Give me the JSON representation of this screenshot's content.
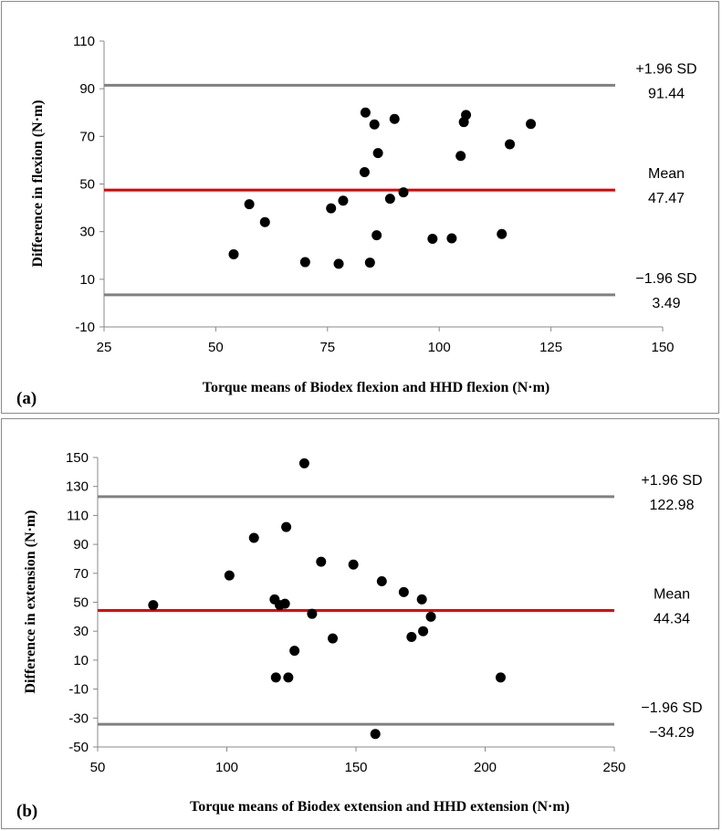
{
  "chart_data": [
    {
      "type": "scatter",
      "panel_label": "(a)",
      "xlabel": "Torque means of Biodex flexion and HHD flexion (N·m)",
      "ylabel": "Difference in flexion (N·m)",
      "xlim": [
        25,
        150
      ],
      "ylim": [
        -10,
        110
      ],
      "x_ticks": [
        25,
        50,
        75,
        100,
        125,
        150
      ],
      "y_ticks": [
        -10,
        10,
        30,
        50,
        70,
        90,
        110
      ],
      "x": [
        54,
        57.5,
        61,
        70,
        75.8,
        77.5,
        78.5,
        83.3,
        83.5,
        84.5,
        85.5,
        86,
        86.3,
        89,
        90,
        92,
        98.5,
        102.8,
        104.8,
        105.5,
        106,
        114,
        115.8,
        120.5
      ],
      "y": [
        20.5,
        41.5,
        34,
        17.2,
        39.8,
        16.5,
        43,
        55,
        80,
        17,
        75,
        28.5,
        63,
        43.8,
        77.3,
        46.5,
        27,
        27.2,
        61.8,
        76,
        79,
        29,
        66.7,
        75.2
      ],
      "reference_lines": [
        {
          "role": "upper",
          "value": 91.44,
          "label": "+1.96 SD",
          "value_label": "91.44",
          "color": "#808080"
        },
        {
          "role": "mean",
          "value": 47.47,
          "label": "Mean",
          "value_label": "47.47",
          "color": "#e00000"
        },
        {
          "role": "lower",
          "value": 3.49,
          "label": "−1.96 SD",
          "value_label": "3.49",
          "color": "#808080"
        }
      ]
    },
    {
      "type": "scatter",
      "panel_label": "(b)",
      "xlabel": "Torque means of Biodex extension and HHD extension (N·m)",
      "ylabel": "Difference in extension (N·m)",
      "xlim": [
        50,
        250
      ],
      "ylim": [
        -50,
        150
      ],
      "x_ticks": [
        50,
        100,
        150,
        200,
        250
      ],
      "y_ticks": [
        -50,
        -30,
        -10,
        10,
        30,
        50,
        70,
        90,
        110,
        130,
        150
      ],
      "x": [
        71.5,
        101,
        110.5,
        118.5,
        119,
        120.5,
        122.5,
        123,
        123.8,
        126.2,
        130,
        133,
        136.5,
        141,
        149,
        157.5,
        160,
        168.5,
        171.5,
        175.5,
        176,
        179,
        206
      ],
      "y": [
        48,
        68.5,
        94.5,
        52,
        -2,
        48,
        49,
        102,
        -2,
        16.5,
        146,
        42,
        78,
        25,
        76,
        -41,
        64.5,
        57,
        26,
        52,
        30,
        40,
        -2
      ],
      "reference_lines": [
        {
          "role": "upper",
          "value": 122.98,
          "label": "+1.96 SD",
          "value_label": "122.98",
          "color": "#808080"
        },
        {
          "role": "mean",
          "value": 44.34,
          "label": "Mean",
          "value_label": "44.34",
          "color": "#e00000"
        },
        {
          "role": "lower",
          "value": -34.29,
          "label": "−1.96 SD",
          "value_label": "−34.29",
          "color": "#808080"
        }
      ]
    }
  ]
}
